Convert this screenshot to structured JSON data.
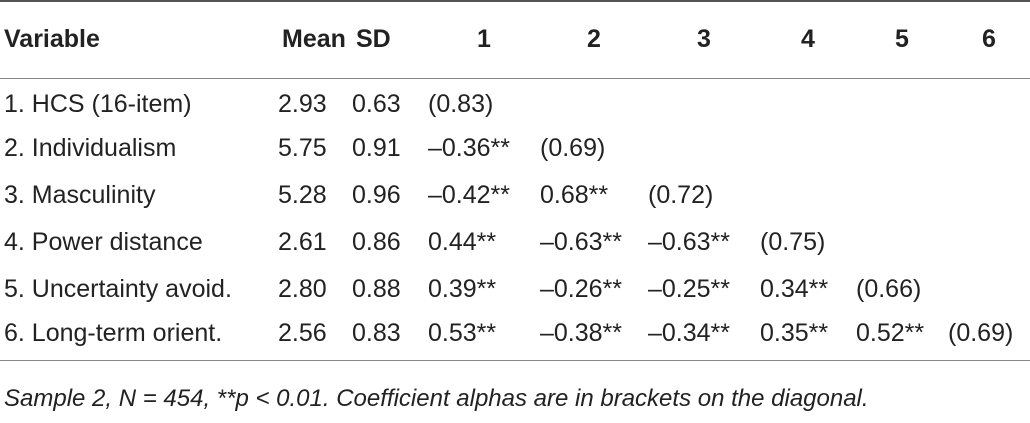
{
  "table": {
    "headers": [
      "Variable",
      "Mean",
      "SD",
      "1",
      "2",
      "3",
      "4",
      "5",
      "6"
    ],
    "rows": [
      {
        "variable": "1. HCS (16-item)",
        "mean": "2.93",
        "sd": "0.63",
        "c1": "(0.83)",
        "c2": "",
        "c3": "",
        "c4": "",
        "c5": "",
        "c6": ""
      },
      {
        "variable": "2. Individualism",
        "mean": "5.75",
        "sd": "0.91",
        "c1": "–0.36**",
        "c2": "(0.69)",
        "c3": "",
        "c4": "",
        "c5": "",
        "c6": ""
      },
      {
        "variable": "3. Masculinity",
        "mean": "5.28",
        "sd": "0.96",
        "c1": "–0.42**",
        "c2": "0.68**",
        "c3": "(0.72)",
        "c4": "",
        "c5": "",
        "c6": ""
      },
      {
        "variable": "4. Power distance",
        "mean": "2.61",
        "sd": "0.86",
        "c1": "0.44**",
        "c2": "–0.63**",
        "c3": "–0.63**",
        "c4": "(0.75)",
        "c5": "",
        "c6": ""
      },
      {
        "variable": "5. Uncertainty avoid.",
        "mean": "2.80",
        "sd": "0.88",
        "c1": "0.39**",
        "c2": "–0.26**",
        "c3": "–0.25**",
        "c4": "0.34**",
        "c5": "(0.66)",
        "c6": ""
      },
      {
        "variable": "6. Long-term orient.",
        "mean": "2.56",
        "sd": "0.83",
        "c1": "0.53**",
        "c2": "–0.38**",
        "c3": "–0.34**",
        "c4": "0.35**",
        "c5": "0.52**",
        "c6": "(0.69)"
      }
    ]
  },
  "note": "Sample 2, N = 454, **p < 0.01. Coefficient alphas are in brackets on the diagonal."
}
